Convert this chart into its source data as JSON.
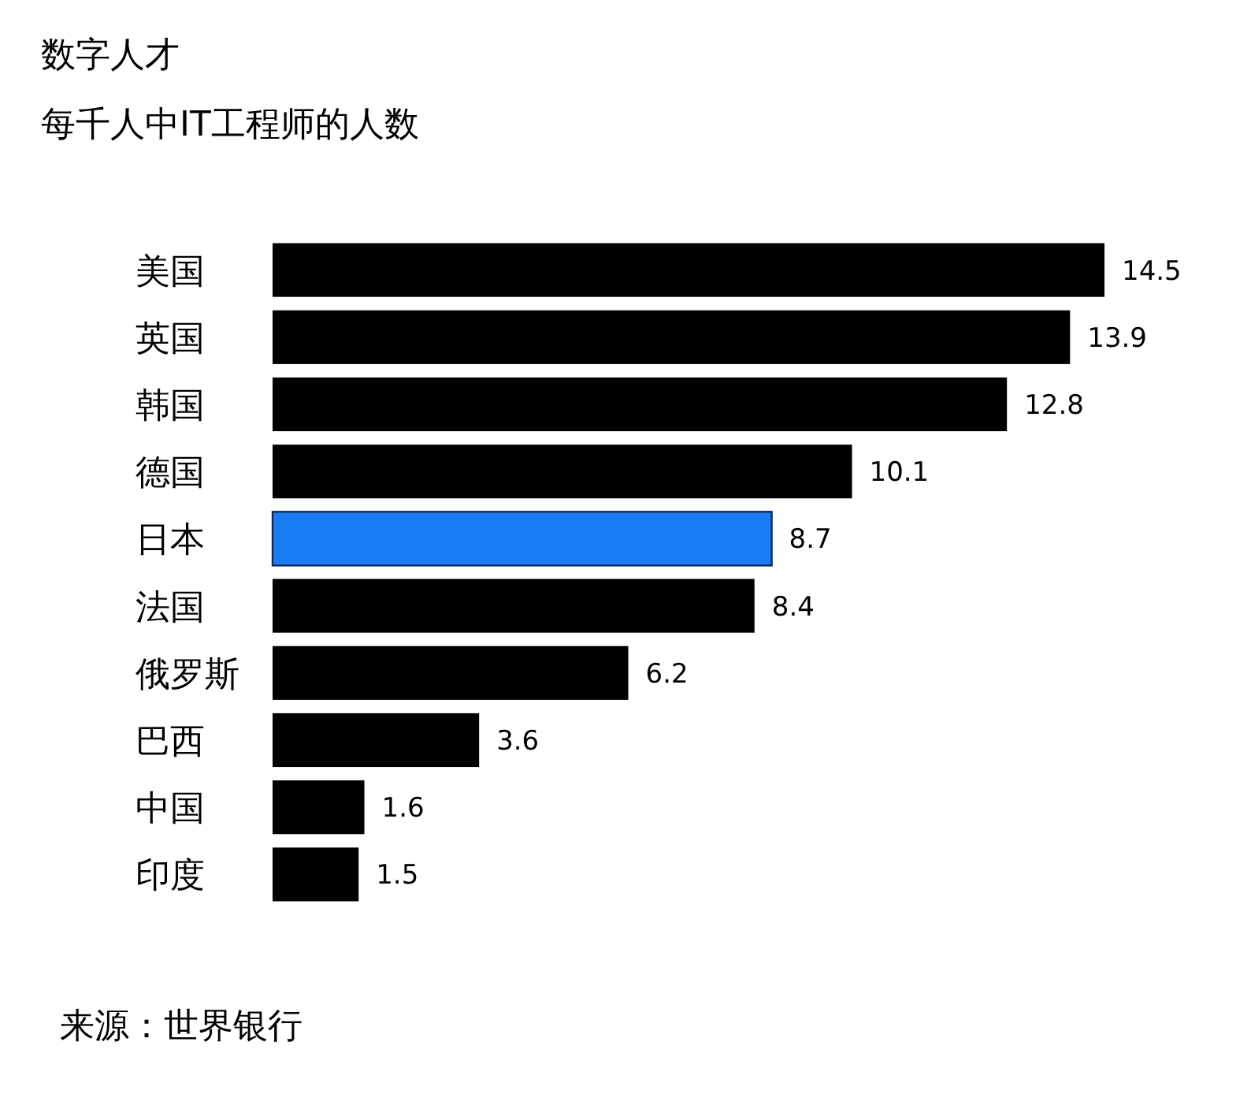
{
  "chart_data": {
    "type": "bar",
    "orientation": "horizontal",
    "title": "数字人才",
    "subtitle": "每千人中IT工程师的人数",
    "categories": [
      "美国",
      "英国",
      "韩国",
      "德国",
      "日本",
      "法国",
      "俄罗斯",
      "巴西",
      "中国",
      "印度"
    ],
    "values": [
      14.5,
      13.9,
      12.8,
      10.1,
      8.7,
      8.4,
      6.2,
      3.6,
      1.6,
      1.5
    ],
    "colors": [
      "#000000",
      "#000000",
      "#000000",
      "#000000",
      "#1a7cf5",
      "#000000",
      "#000000",
      "#000000",
      "#000000",
      "#000000"
    ],
    "data_labels": true,
    "annotations": [
      "来源：世界银行"
    ]
  }
}
